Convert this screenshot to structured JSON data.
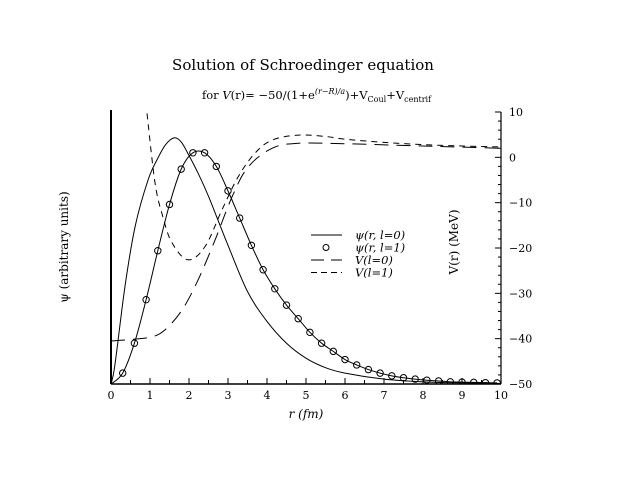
{
  "chart_data": {
    "type": "line",
    "title": "Solution of Schroedinger equation",
    "subtitle": "for V(r)= −50/(1+e^((r−R)/a))+V_Coul+V_centrif",
    "subtitle_parts": {
      "prefix": "for ",
      "V": "V",
      "r": "(r)",
      "formula": "= −50/(1+e",
      "exp": "(r−R)/a",
      "close": ")+V",
      "coul": "Coul",
      "plus": "+V",
      "centrif": "centrif"
    },
    "xlabel": "r (fm)",
    "ylabel_left": "ψ (arbitrary units)",
    "ylabel_right": "V(r) (MeV)",
    "xlim": [
      0,
      10
    ],
    "ylim_left": [
      0,
      1
    ],
    "ylim_right": [
      -50,
      10
    ],
    "x_ticks": [
      "0",
      "1",
      "2",
      "3",
      "4",
      "5",
      "6",
      "7",
      "8",
      "9",
      "10"
    ],
    "right_ticks": [
      "10",
      "0",
      "−10",
      "−20",
      "−30",
      "−40",
      "−50"
    ],
    "legend_position": "center-right",
    "series": [
      {
        "name": "ψ(r, l=0)",
        "axis": "left",
        "style": "solid",
        "x": [
          0,
          0.1,
          0.36,
          0.62,
          0.95,
          1.2,
          1.4,
          1.62,
          1.8,
          2.0,
          2.25,
          2.5,
          2.75,
          3.0,
          3.5,
          4.0,
          4.5,
          5.0,
          5.5,
          6.0,
          7.0,
          8.0,
          9.0,
          10.0
        ],
        "y": [
          0,
          0.07,
          0.36,
          0.58,
          0.75,
          0.83,
          0.88,
          0.905,
          0.89,
          0.84,
          0.77,
          0.69,
          0.6,
          0.51,
          0.34,
          0.23,
          0.15,
          0.095,
          0.06,
          0.04,
          0.018,
          0.008,
          0.004,
          0.002
        ]
      },
      {
        "name": "ψ(r, l=1)",
        "axis": "left",
        "style": "circles+line",
        "x": [
          0,
          0.3,
          0.6,
          0.9,
          1.2,
          1.5,
          1.8,
          2.1,
          2.4,
          2.7,
          3.0,
          3.3,
          3.6,
          3.9,
          4.2,
          4.5,
          4.8,
          5.1,
          5.4,
          5.7,
          6.0,
          6.3,
          6.6,
          6.9,
          7.2,
          7.5,
          7.8,
          8.1,
          8.4,
          8.7,
          9.0,
          9.3,
          9.6,
          9.9
        ],
        "y": [
          0,
          0.04,
          0.15,
          0.31,
          0.49,
          0.66,
          0.79,
          0.85,
          0.85,
          0.8,
          0.71,
          0.61,
          0.51,
          0.42,
          0.35,
          0.29,
          0.24,
          0.19,
          0.15,
          0.12,
          0.09,
          0.07,
          0.053,
          0.04,
          0.03,
          0.023,
          0.018,
          0.014,
          0.011,
          0.008,
          0.007,
          0.006,
          0.005,
          0.004
        ]
      },
      {
        "name": "V(l=0)",
        "axis": "right",
        "style": "long-dash",
        "x": [
          0,
          0.5,
          1.05,
          1.38,
          1.82,
          2.23,
          2.67,
          3.1,
          3.51,
          4.13,
          4.8,
          6.0,
          8.0,
          10.0
        ],
        "y": [
          -40.5,
          -40.2,
          -39.6,
          -38.1,
          -33.7,
          -27.1,
          -18.2,
          -8.8,
          -2.2,
          2.0,
          3.1,
          3.0,
          2.5,
          2.0
        ]
      },
      {
        "name": "V(l=1)",
        "axis": "right",
        "style": "short-dash",
        "x": [
          0.9,
          0.92,
          1.13,
          1.33,
          1.56,
          1.97,
          2.41,
          2.85,
          3.26,
          3.69,
          4.13,
          4.8,
          5.5,
          6.0,
          7.0,
          8.0,
          9.0,
          10.0
        ],
        "y": [
          12,
          10,
          -5.7,
          -13.1,
          -18.8,
          -22.6,
          -19.7,
          -11.5,
          -4.3,
          0.9,
          3.8,
          4.9,
          4.6,
          4.0,
          3.3,
          2.8,
          2.5,
          2.3
        ]
      }
    ],
    "legend": [
      {
        "symbol": "solid",
        "label": "ψ(r, l=0)"
      },
      {
        "symbol": "circle",
        "label": "ψ(r, l=1)"
      },
      {
        "symbol": "long-dash",
        "label": "V(l=0)"
      },
      {
        "symbol": "short-dash",
        "label": "V(l=1)"
      }
    ]
  }
}
